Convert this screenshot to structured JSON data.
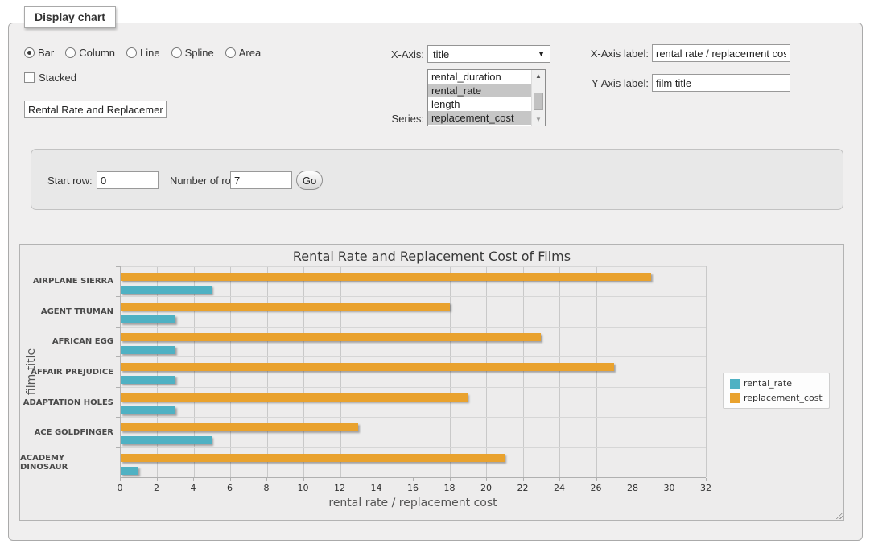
{
  "panel": {
    "legend": "Display chart"
  },
  "chart_type_options": [
    {
      "label": "Bar",
      "selected": true
    },
    {
      "label": "Column",
      "selected": false
    },
    {
      "label": "Line",
      "selected": false
    },
    {
      "label": "Spline",
      "selected": false
    },
    {
      "label": "Area",
      "selected": false
    }
  ],
  "stacked": {
    "label": "Stacked",
    "checked": false
  },
  "chart_title_input": {
    "value": "Rental Rate and Replacemer"
  },
  "x_axis": {
    "label": "X-Axis:",
    "value": "title"
  },
  "series_select": {
    "label": "Series:",
    "options": [
      {
        "label": "rental_duration",
        "selected": false
      },
      {
        "label": "rental_rate",
        "selected": true
      },
      {
        "label": "length",
        "selected": false
      },
      {
        "label": "replacement_cost",
        "selected": true
      }
    ]
  },
  "x_axis_label": {
    "label": "X-Axis label:",
    "value": "rental rate / replacement cost"
  },
  "y_axis_label": {
    "label": "Y-Axis label:",
    "value": "film title"
  },
  "row_controls": {
    "start_row_label": "Start row:",
    "start_row_value": "0",
    "num_rows_label": "Number of rows:",
    "num_rows_value": "7",
    "go_label": "Go"
  },
  "chart_data": {
    "type": "bar",
    "title": "Rental Rate and Replacement Cost of Films",
    "categories": [
      "AIRPLANE SIERRA",
      "AGENT TRUMAN",
      "AFRICAN EGG",
      "AFFAIR PREJUDICE",
      "ADAPTATION HOLES",
      "ACE GOLDFINGER",
      "ACADEMY DINOSAUR"
    ],
    "series": [
      {
        "name": "rental_rate",
        "color": "#4fb1c3",
        "values": [
          4.99,
          2.99,
          2.99,
          2.99,
          2.99,
          4.99,
          0.99
        ]
      },
      {
        "name": "replacement_cost",
        "color": "#e9a22e",
        "values": [
          28.99,
          17.99,
          22.99,
          26.99,
          18.99,
          12.99,
          20.99
        ]
      }
    ],
    "bar_order": [
      "replacement_cost",
      "rental_rate"
    ],
    "xlabel": "rental rate / replacement cost",
    "ylabel": "film title",
    "xlim": [
      0,
      32
    ],
    "xticks": [
      0,
      2,
      4,
      6,
      8,
      10,
      12,
      14,
      16,
      18,
      20,
      22,
      24,
      26,
      28,
      30,
      32
    ],
    "grid": true,
    "legend_position": "right"
  }
}
